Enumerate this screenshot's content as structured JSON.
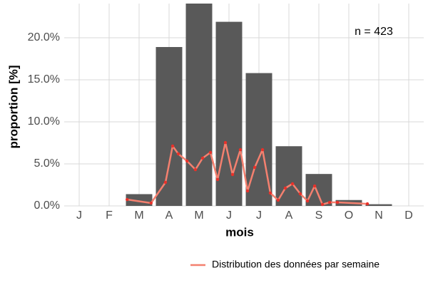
{
  "chart_data": {
    "type": "bar",
    "x_label": "mois",
    "y_label": "proportion [%]",
    "annotation": "n = 423",
    "categories": [
      "J",
      "F",
      "M",
      "A",
      "M",
      "J",
      "J",
      "A",
      "S",
      "O",
      "N",
      "D"
    ],
    "values": [
      0,
      0,
      1.4,
      18.9,
      24.3,
      21.9,
      15.8,
      7.1,
      3.8,
      0.7,
      0.2,
      0
    ],
    "color": "#595959",
    "xlim": [
      0.5,
      12.5
    ],
    "ylim": [
      0,
      24.07
    ],
    "yticks": [
      {
        "value": 0,
        "label": "0.0%"
      },
      {
        "value": 5,
        "label": "5.0%"
      },
      {
        "value": 10,
        "label": "10.0%"
      },
      {
        "value": 15,
        "label": "15.0%"
      },
      {
        "value": 20,
        "label": "20.0%"
      }
    ],
    "grid": true,
    "legend": "bottom-right",
    "line": {
      "name": "Distribution des données par semaine",
      "color": "#f4806f",
      "marker_color": "#e8312a",
      "x": [
        2.6,
        3.4,
        3.88,
        4.12,
        4.31,
        4.6,
        4.88,
        5.12,
        5.38,
        5.62,
        5.88,
        6.12,
        6.38,
        6.62,
        6.86,
        7.12,
        7.38,
        7.64,
        7.88,
        8.12,
        8.38,
        8.62,
        8.86,
        9.12,
        9.36,
        9.62,
        10.62
      ],
      "values": [
        0.76,
        0.34,
        2.8,
        7.12,
        6.19,
        5.34,
        4.32,
        5.68,
        6.36,
        3.14,
        7.54,
        3.73,
        6.69,
        1.78,
        4.58,
        6.69,
        1.53,
        0.68,
        2.12,
        2.63,
        1.44,
        0.59,
        2.37,
        0.17,
        0.42,
        0.42,
        0.25
      ]
    }
  }
}
